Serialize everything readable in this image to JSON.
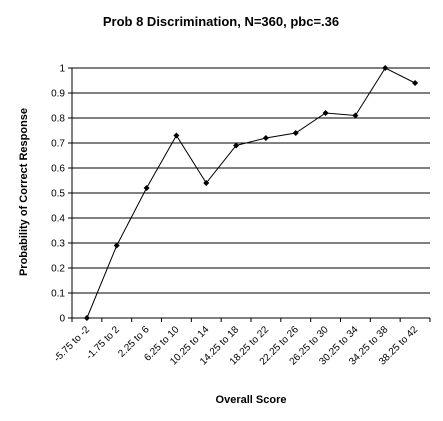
{
  "chart_data": {
    "type": "line",
    "title": "Prob 8 Discrimination, N=360, pbc=.36",
    "xlabel": "Overall Score",
    "ylabel": "Probability of Correct Response",
    "categories": [
      "-5.75 to -2",
      "-1.75 to 2",
      "2.25 to 6",
      "6.25 to 10",
      "10.25 to 14",
      "14.25 to 18",
      "18.25 to 22",
      "22.25 to 26",
      "26.25 to 30",
      "30.25 to 34",
      "34.25 to 38",
      "38.25 to 42"
    ],
    "values": [
      0.0,
      0.29,
      0.52,
      0.73,
      0.54,
      0.69,
      0.72,
      0.74,
      0.82,
      0.81,
      1.0,
      0.94
    ],
    "ylim": [
      0,
      1
    ],
    "yticks": [
      "0",
      "0.1",
      "0.2",
      "0.3",
      "0.4",
      "0.5",
      "0.6",
      "0.7",
      "0.8",
      "0.9",
      "1"
    ],
    "grid": true,
    "series_color": "#000000",
    "grid_color": "#000000"
  }
}
